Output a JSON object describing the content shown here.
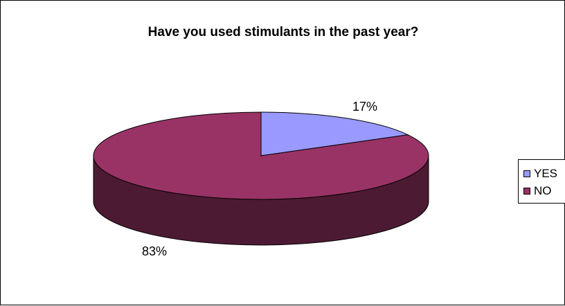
{
  "chart_data": {
    "type": "pie",
    "style": "3d",
    "title": "Have you used stimulants in the past year?",
    "categories": [
      "YES",
      "NO"
    ],
    "values": [
      17,
      83
    ],
    "data_labels": [
      "17%",
      "83%"
    ],
    "colors": [
      "#9999ff",
      "#993366"
    ],
    "legend_position": "right"
  }
}
